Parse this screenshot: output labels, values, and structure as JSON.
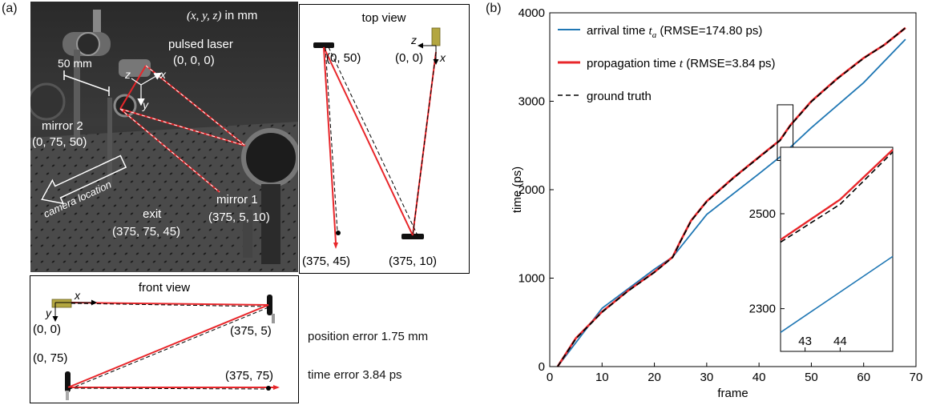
{
  "panel_a": {
    "label": "(a)",
    "photo": {
      "coord_note_vars": "(x, y, z)",
      "coord_note_unit": " in mm",
      "laser_name": "pulsed laser",
      "laser_coord": "(0, 0, 0)",
      "scale_bar": "50 mm",
      "axis_x": "x",
      "axis_y": "y",
      "axis_z": "z",
      "mirror2_name": "mirror 2",
      "mirror2_coord": "(0, 75, 50)",
      "camera_label": "camera location",
      "exit_name": "exit",
      "exit_coord": "(375, 75, 45)",
      "mirror1_name": "mirror 1",
      "mirror1_coord": "(375, 5, 10)"
    },
    "top_view": {
      "title": "top view",
      "axis_z": "z",
      "axis_x": "x",
      "p_050": "(0, 50)",
      "p_00": "(0, 0)",
      "p_37545": "(375, 45)",
      "p_37510": "(375, 10)"
    },
    "front_view": {
      "title": "front view",
      "axis_x": "x",
      "axis_y": "y",
      "p_00": "(0, 0)",
      "p_3755": "(375, 5)",
      "p_075": "(0, 75)",
      "p_37575": "(375, 75)"
    },
    "errors": {
      "position": "position error 1.75 mm",
      "time": "time error 3.84 ps"
    }
  },
  "panel_b": {
    "label": "(b)",
    "chart_data": {
      "type": "line",
      "xlabel": "frame",
      "ylabel": "time (ps)",
      "xlim": [
        0,
        70
      ],
      "ylim": [
        0,
        4000
      ],
      "xticks": [
        "0",
        "10",
        "20",
        "30",
        "40",
        "50",
        "60",
        "70"
      ],
      "yticks": [
        "0",
        "1000",
        "2000",
        "3000",
        "4000"
      ],
      "legend_position": "top-left",
      "series": [
        {
          "name": "arrival time t_a (RMSE=174.80 ps)",
          "name_prefix": "arrival time ",
          "name_var": "t",
          "name_sub": "a",
          "name_suffix": " (RMSE=174.80 ps)",
          "color": "#1f77b4",
          "style": "solid",
          "x": [
            1.5,
            10,
            20,
            23.5,
            30,
            40,
            44,
            50,
            60,
            68
          ],
          "y": [
            0,
            660,
            1100,
            1240,
            1720,
            2180,
            2370,
            2700,
            3210,
            3700
          ]
        },
        {
          "name": "propagation time t (RMSE=3.84 ps)",
          "name_prefix": "propagation time ",
          "name_var": "t",
          "name_suffix": " (RMSE=3.84 ps)",
          "color": "#e8262a",
          "style": "solid",
          "x": [
            1.5,
            5,
            10,
            15,
            20,
            23.5,
            25,
            27,
            30,
            35,
            40,
            44,
            46,
            50,
            55,
            60,
            64,
            68
          ],
          "y": [
            0,
            320,
            620,
            860,
            1070,
            1240,
            1420,
            1650,
            1870,
            2130,
            2370,
            2560,
            2730,
            3000,
            3260,
            3490,
            3640,
            3830
          ]
        },
        {
          "name": "ground truth",
          "name_prefix": "ground truth",
          "color": "#000000",
          "style": "dashed",
          "x": [
            1.5,
            5,
            10,
            15,
            20,
            23.5,
            25,
            27,
            30,
            35,
            40,
            44,
            46,
            50,
            55,
            60,
            64,
            68
          ],
          "y": [
            0,
            315,
            615,
            855,
            1065,
            1235,
            1415,
            1645,
            1865,
            2125,
            2365,
            2555,
            2725,
            2995,
            3255,
            3485,
            3640,
            3830
          ]
        }
      ],
      "inset": {
        "xlim": [
          42.3,
          45.5
        ],
        "ylim": [
          2210,
          2640
        ],
        "xticks": [
          "43",
          "44"
        ],
        "yticks": [
          "2300",
          "2500"
        ],
        "series": [
          {
            "color": "#1f77b4",
            "style": "solid",
            "x": [
              42.3,
              45.5
            ],
            "y": [
              2250,
              2410
            ]
          },
          {
            "color": "#e8262a",
            "style": "solid",
            "x": [
              42.3,
              44,
              45.5
            ],
            "y": [
              2445,
              2530,
              2635
            ]
          },
          {
            "color": "#000000",
            "style": "dashed",
            "x": [
              42.3,
              44,
              45.5
            ],
            "y": [
              2440,
              2520,
              2630
            ]
          }
        ]
      }
    }
  }
}
